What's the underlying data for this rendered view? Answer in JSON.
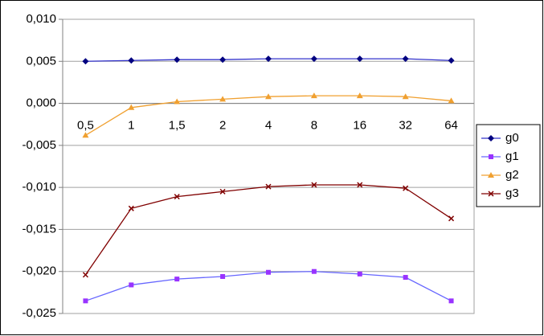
{
  "chart_data": {
    "type": "line",
    "categories": [
      "0,5",
      "1",
      "1,5",
      "2",
      "4",
      "8",
      "16",
      "32",
      "64"
    ],
    "series": [
      {
        "name": "g0",
        "color": "#000080",
        "line_color": "#3333cc",
        "marker": "diamond",
        "values": [
          0.005,
          0.0051,
          0.0052,
          0.0052,
          0.0053,
          0.0053,
          0.0053,
          0.0053,
          0.0051
        ]
      },
      {
        "name": "g1",
        "color": "#9933ff",
        "line_color": "#6666ff",
        "marker": "square",
        "values": [
          -0.0235,
          -0.0216,
          -0.0209,
          -0.0206,
          -0.0201,
          -0.02,
          -0.0203,
          -0.0207,
          -0.0235
        ]
      },
      {
        "name": "g2",
        "color": "#f0a030",
        "line_color": "#f0a030",
        "marker": "triangle",
        "values": [
          -0.0038,
          -0.0005,
          0.0002,
          0.0005,
          0.0008,
          0.0009,
          0.0009,
          0.0008,
          0.0003
        ]
      },
      {
        "name": "g3",
        "color": "#800000",
        "line_color": "#800000",
        "marker": "x",
        "values": [
          -0.0204,
          -0.0125,
          -0.0111,
          -0.0105,
          -0.0099,
          -0.0097,
          -0.0097,
          -0.0101,
          -0.0137
        ]
      }
    ],
    "ylim": [
      -0.025,
      0.01
    ],
    "yticks": [
      {
        "value": -0.025,
        "label": "-0,025"
      },
      {
        "value": -0.02,
        "label": "-0,020"
      },
      {
        "value": -0.015,
        "label": "-0,015"
      },
      {
        "value": -0.01,
        "label": "-0,010"
      },
      {
        "value": -0.005,
        "label": "-0,005"
      },
      {
        "value": 0,
        "label": "0,000"
      },
      {
        "value": 0.005,
        "label": "0,005"
      },
      {
        "value": 0.01,
        "label": "0,010"
      }
    ],
    "grid": true,
    "legend": "right"
  }
}
